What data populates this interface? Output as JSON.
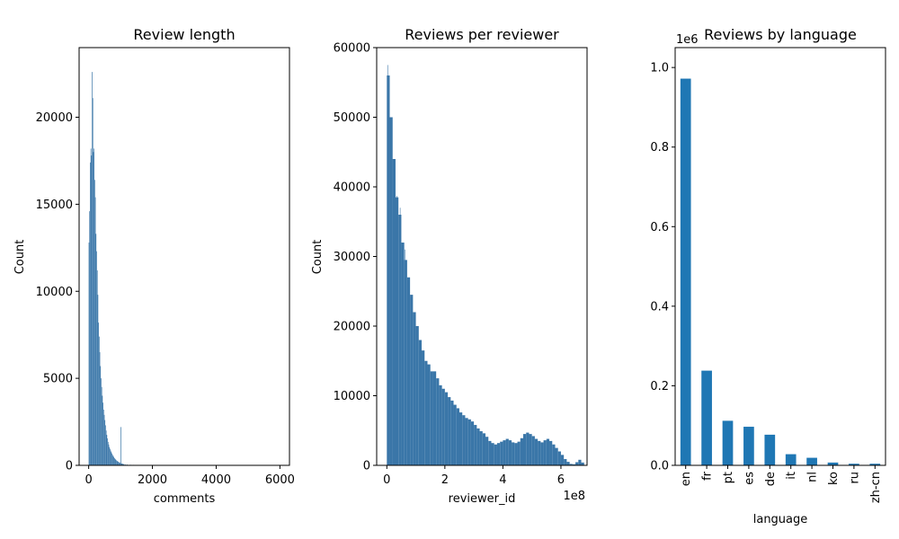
{
  "chart_data": [
    {
      "type": "histogram",
      "title": "Review length",
      "xlabel": "comments",
      "ylabel": "Count",
      "xlim": [
        -300,
        6300
      ],
      "ylim": [
        0,
        24000
      ],
      "xticks": [
        "0",
        "2000",
        "4000",
        "6000"
      ],
      "yticks": [
        "0",
        "5000",
        "10000",
        "15000",
        "20000"
      ],
      "bar_color": "#3a76a8",
      "bin_width": 20,
      "bins": [
        {
          "x": 0,
          "y": 12800
        },
        {
          "x": 20,
          "y": 14600
        },
        {
          "x": 40,
          "y": 17400
        },
        {
          "x": 60,
          "y": 18200
        },
        {
          "x": 80,
          "y": 17800
        },
        {
          "x": 100,
          "y": 22600
        },
        {
          "x": 120,
          "y": 21100
        },
        {
          "x": 140,
          "y": 18000
        },
        {
          "x": 160,
          "y": 18200
        },
        {
          "x": 180,
          "y": 16400
        },
        {
          "x": 200,
          "y": 15400
        },
        {
          "x": 220,
          "y": 13300
        },
        {
          "x": 240,
          "y": 12300
        },
        {
          "x": 260,
          "y": 11200
        },
        {
          "x": 280,
          "y": 9800
        },
        {
          "x": 300,
          "y": 8200
        },
        {
          "x": 320,
          "y": 7400
        },
        {
          "x": 340,
          "y": 6500
        },
        {
          "x": 360,
          "y": 5700
        },
        {
          "x": 380,
          "y": 5000
        },
        {
          "x": 400,
          "y": 4500
        },
        {
          "x": 420,
          "y": 4000
        },
        {
          "x": 440,
          "y": 3600
        },
        {
          "x": 460,
          "y": 3200
        },
        {
          "x": 480,
          "y": 2900
        },
        {
          "x": 500,
          "y": 2600
        },
        {
          "x": 520,
          "y": 2300
        },
        {
          "x": 540,
          "y": 2000
        },
        {
          "x": 560,
          "y": 1750
        },
        {
          "x": 580,
          "y": 1550
        },
        {
          "x": 600,
          "y": 1350
        },
        {
          "x": 620,
          "y": 1200
        },
        {
          "x": 640,
          "y": 1050
        },
        {
          "x": 660,
          "y": 950
        },
        {
          "x": 680,
          "y": 850
        },
        {
          "x": 700,
          "y": 760
        },
        {
          "x": 720,
          "y": 680
        },
        {
          "x": 740,
          "y": 600
        },
        {
          "x": 760,
          "y": 540
        },
        {
          "x": 780,
          "y": 480
        },
        {
          "x": 800,
          "y": 420
        },
        {
          "x": 820,
          "y": 370
        },
        {
          "x": 840,
          "y": 330
        },
        {
          "x": 860,
          "y": 290
        },
        {
          "x": 880,
          "y": 260
        },
        {
          "x": 900,
          "y": 230
        },
        {
          "x": 920,
          "y": 200
        },
        {
          "x": 940,
          "y": 180
        },
        {
          "x": 960,
          "y": 160
        },
        {
          "x": 980,
          "y": 140
        },
        {
          "x": 1000,
          "y": 2200
        },
        {
          "x": 1020,
          "y": 110
        },
        {
          "x": 1040,
          "y": 95
        },
        {
          "x": 1060,
          "y": 85
        },
        {
          "x": 1080,
          "y": 75
        },
        {
          "x": 1100,
          "y": 65
        },
        {
          "x": 1150,
          "y": 55
        },
        {
          "x": 1200,
          "y": 45
        },
        {
          "x": 1300,
          "y": 35
        },
        {
          "x": 1400,
          "y": 28
        },
        {
          "x": 1500,
          "y": 22
        },
        {
          "x": 1600,
          "y": 18
        },
        {
          "x": 1800,
          "y": 12
        },
        {
          "x": 2000,
          "y": 8
        },
        {
          "x": 2500,
          "y": 5
        },
        {
          "x": 3000,
          "y": 3
        }
      ]
    },
    {
      "type": "histogram",
      "title": "Reviews per reviewer",
      "xlabel": "reviewer_id",
      "ylabel": "Count",
      "x_offset_text": "1e8",
      "xlim": [
        -0.35,
        6.9
      ],
      "ylim": [
        0,
        60000
      ],
      "xticks": [
        "0",
        "2",
        "4",
        "6"
      ],
      "yticks": [
        "0",
        "10000",
        "20000",
        "30000",
        "40000",
        "50000",
        "60000"
      ],
      "bar_color": "#3a76a8",
      "bin_width": 0.1,
      "bins": [
        {
          "x": 0.0,
          "y": 56000
        },
        {
          "x": 0.1,
          "y": 50000
        },
        {
          "x": 0.2,
          "y": 44000
        },
        {
          "x": 0.3,
          "y": 38500
        },
        {
          "x": 0.4,
          "y": 36000
        },
        {
          "x": 0.5,
          "y": 32000
        },
        {
          "x": 0.6,
          "y": 29500
        },
        {
          "x": 0.7,
          "y": 27000
        },
        {
          "x": 0.8,
          "y": 24500
        },
        {
          "x": 0.9,
          "y": 22000
        },
        {
          "x": 1.0,
          "y": 20000
        },
        {
          "x": 1.1,
          "y": 18000
        },
        {
          "x": 1.2,
          "y": 16500
        },
        {
          "x": 1.3,
          "y": 15000
        },
        {
          "x": 1.4,
          "y": 14500
        },
        {
          "x": 1.5,
          "y": 13500
        },
        {
          "x": 1.6,
          "y": 13500
        },
        {
          "x": 1.7,
          "y": 12500
        },
        {
          "x": 1.8,
          "y": 11500
        },
        {
          "x": 1.9,
          "y": 11000
        },
        {
          "x": 2.0,
          "y": 10500
        },
        {
          "x": 2.1,
          "y": 9800
        },
        {
          "x": 2.2,
          "y": 9300
        },
        {
          "x": 2.3,
          "y": 8700
        },
        {
          "x": 2.4,
          "y": 8200
        },
        {
          "x": 2.5,
          "y": 7600
        },
        {
          "x": 2.6,
          "y": 7200
        },
        {
          "x": 2.7,
          "y": 6800
        },
        {
          "x": 2.8,
          "y": 6600
        },
        {
          "x": 2.9,
          "y": 6300
        },
        {
          "x": 3.0,
          "y": 5800
        },
        {
          "x": 3.1,
          "y": 5300
        },
        {
          "x": 3.2,
          "y": 4900
        },
        {
          "x": 3.3,
          "y": 4600
        },
        {
          "x": 3.4,
          "y": 4100
        },
        {
          "x": 3.5,
          "y": 3500
        },
        {
          "x": 3.6,
          "y": 3200
        },
        {
          "x": 3.7,
          "y": 3000
        },
        {
          "x": 3.8,
          "y": 3200
        },
        {
          "x": 3.9,
          "y": 3400
        },
        {
          "x": 4.0,
          "y": 3600
        },
        {
          "x": 4.1,
          "y": 3800
        },
        {
          "x": 4.2,
          "y": 3600
        },
        {
          "x": 4.3,
          "y": 3300
        },
        {
          "x": 4.4,
          "y": 3200
        },
        {
          "x": 4.5,
          "y": 3400
        },
        {
          "x": 4.6,
          "y": 3900
        },
        {
          "x": 4.7,
          "y": 4500
        },
        {
          "x": 4.8,
          "y": 4700
        },
        {
          "x": 4.9,
          "y": 4500
        },
        {
          "x": 5.0,
          "y": 4200
        },
        {
          "x": 5.1,
          "y": 3800
        },
        {
          "x": 5.2,
          "y": 3500
        },
        {
          "x": 5.3,
          "y": 3300
        },
        {
          "x": 5.4,
          "y": 3600
        },
        {
          "x": 5.5,
          "y": 3800
        },
        {
          "x": 5.6,
          "y": 3500
        },
        {
          "x": 5.7,
          "y": 3000
        },
        {
          "x": 5.8,
          "y": 2500
        },
        {
          "x": 5.9,
          "y": 2000
        },
        {
          "x": 6.0,
          "y": 1500
        },
        {
          "x": 6.1,
          "y": 900
        },
        {
          "x": 6.2,
          "y": 500
        },
        {
          "x": 6.3,
          "y": 200
        },
        {
          "x": 6.4,
          "y": 150
        },
        {
          "x": 6.5,
          "y": 450
        },
        {
          "x": 6.6,
          "y": 800
        },
        {
          "x": 6.7,
          "y": 400
        }
      ],
      "spikes": [
        {
          "x": 0.02,
          "y": 57500
        },
        {
          "x": 0.05,
          "y": 52000
        },
        {
          "x": 0.12,
          "y": 47000
        },
        {
          "x": 0.2,
          "y": 44000
        },
        {
          "x": 0.27,
          "y": 41000
        },
        {
          "x": 0.33,
          "y": 38700
        },
        {
          "x": 0.45,
          "y": 37000
        },
        {
          "x": 0.62,
          "y": 31000
        }
      ]
    },
    {
      "type": "bar",
      "title": "Reviews by language",
      "xlabel": "language",
      "ylabel": "",
      "y_offset_text": "1e6",
      "ylim": [
        0,
        1.05
      ],
      "yticks": [
        "0.0",
        "0.2",
        "0.4",
        "0.6",
        "0.8",
        "1.0"
      ],
      "bar_color": "#1f77b4",
      "categories": [
        "en",
        "fr",
        "pt",
        "es",
        "de",
        "it",
        "nl",
        "ko",
        "ru",
        "zh-cn"
      ],
      "values": [
        0.972,
        0.238,
        0.112,
        0.097,
        0.077,
        0.028,
        0.019,
        0.007,
        0.004,
        0.004
      ]
    }
  ]
}
